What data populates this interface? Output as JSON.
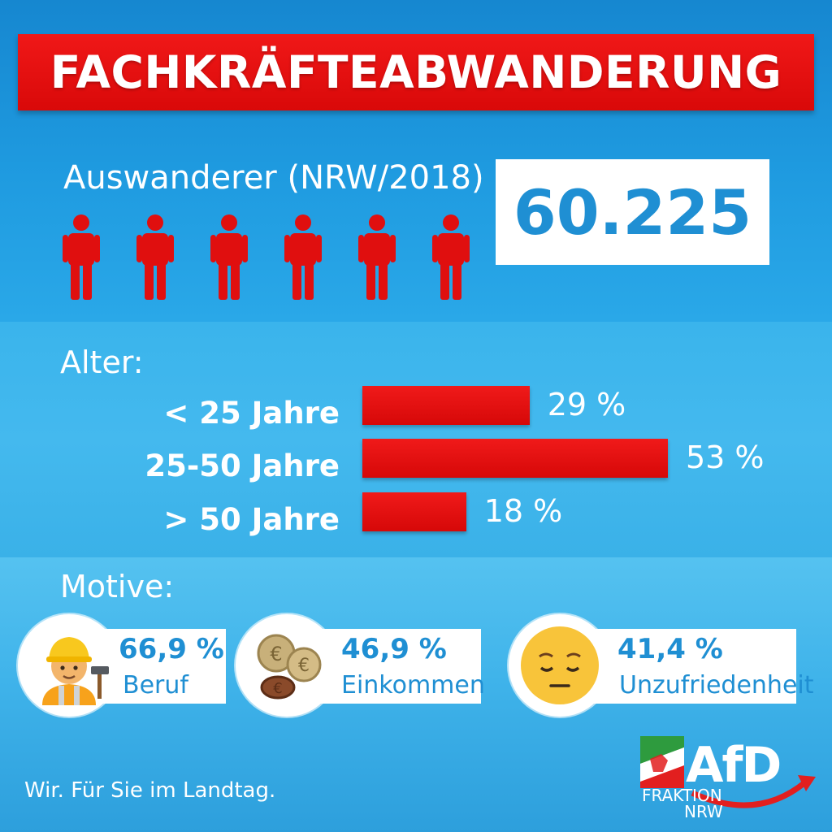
{
  "title": "FACHKRÄFTEABWANDERUNG",
  "emigrants": {
    "label": "Auswanderer (NRW/2018)",
    "value": "60.225",
    "icon": "person-icon",
    "icon_count": 6
  },
  "age": {
    "label": "Alter:"
  },
  "motives": {
    "label": "Motive:",
    "items": [
      {
        "pct": "66,9 %",
        "label": "Beruf",
        "icon": "construction-worker-icon"
      },
      {
        "pct": "46,9 %",
        "label": "Einkommen",
        "icon": "coins-icon"
      },
      {
        "pct": "41,4 %",
        "label": "Unzufriedenheit",
        "icon": "pensive-face-icon"
      }
    ]
  },
  "slogan": "Wir. Für Sie im Landtag.",
  "logo": {
    "brand": "AfD",
    "line1": "FRAKTION",
    "line2": "NRW"
  },
  "colors": {
    "accent": "#e00f0f",
    "text_blue": "#1f8fd3",
    "background": "#2aa3e2"
  },
  "chart_data": {
    "type": "bar",
    "orientation": "horizontal",
    "categories": [
      "< 25 Jahre",
      "25-50 Jahre",
      "> 50 Jahre"
    ],
    "values": [
      29,
      53,
      18
    ],
    "value_labels": [
      "29 %",
      "53 %",
      "18 %"
    ],
    "unit": "%",
    "title": "Alter:",
    "xlim": [
      0,
      100
    ],
    "grid": false
  }
}
